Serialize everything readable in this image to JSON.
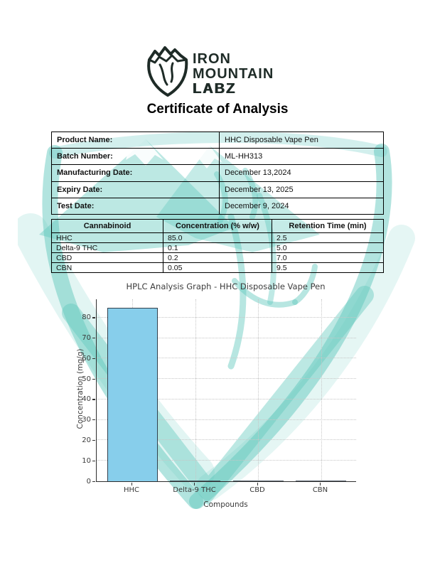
{
  "logo": {
    "line1": "IRON",
    "line2": "MOUNTAIN",
    "line3": "LABZ",
    "color": "#1e2b27"
  },
  "title": "Certificate of Analysis",
  "info_table": {
    "rows": [
      {
        "label": "Product Name:",
        "value": "HHC Disposable Vape Pen"
      },
      {
        "label": "Batch Number:",
        "value": "ML-HH313"
      },
      {
        "label": "Manufacturing Date:",
        "value": "December 13,2024"
      },
      {
        "label": "Expiry Date:",
        "value": "December 13, 2025"
      },
      {
        "label": "Test Date:",
        "value": "December 9, 2024"
      }
    ]
  },
  "cannabinoid_table": {
    "headers": [
      "Cannabinoid",
      "Concentration (% w/w)",
      "Retention Time (min)"
    ],
    "rows": [
      [
        "HHC",
        "85.0",
        "2.5"
      ],
      [
        "Delta-9 THC",
        "0.1",
        "5.0"
      ],
      [
        "CBD",
        "0.2",
        "7.0"
      ],
      [
        "CBN",
        "0.05",
        "9.5"
      ]
    ]
  },
  "chart_data": {
    "type": "bar",
    "title": "HPLC Analysis Graph - HHC Disposable Vape Pen",
    "categories": [
      "HHC",
      "Delta-9 THC",
      "CBD",
      "CBN"
    ],
    "values": [
      85,
      0.1,
      0.2,
      0.05
    ],
    "xlabel": "Compounds",
    "ylabel": "Concentration (mg/g)",
    "ylim": [
      0,
      89
    ],
    "yticks": [
      0,
      10,
      20,
      30,
      40,
      50,
      60,
      70,
      80
    ],
    "grid": true,
    "grid_style": "dotted",
    "legend": false,
    "bar_color": "#87ceeb",
    "bar_edge_color": "#32404d"
  },
  "watermark": {
    "color": "#5fc7bd"
  }
}
